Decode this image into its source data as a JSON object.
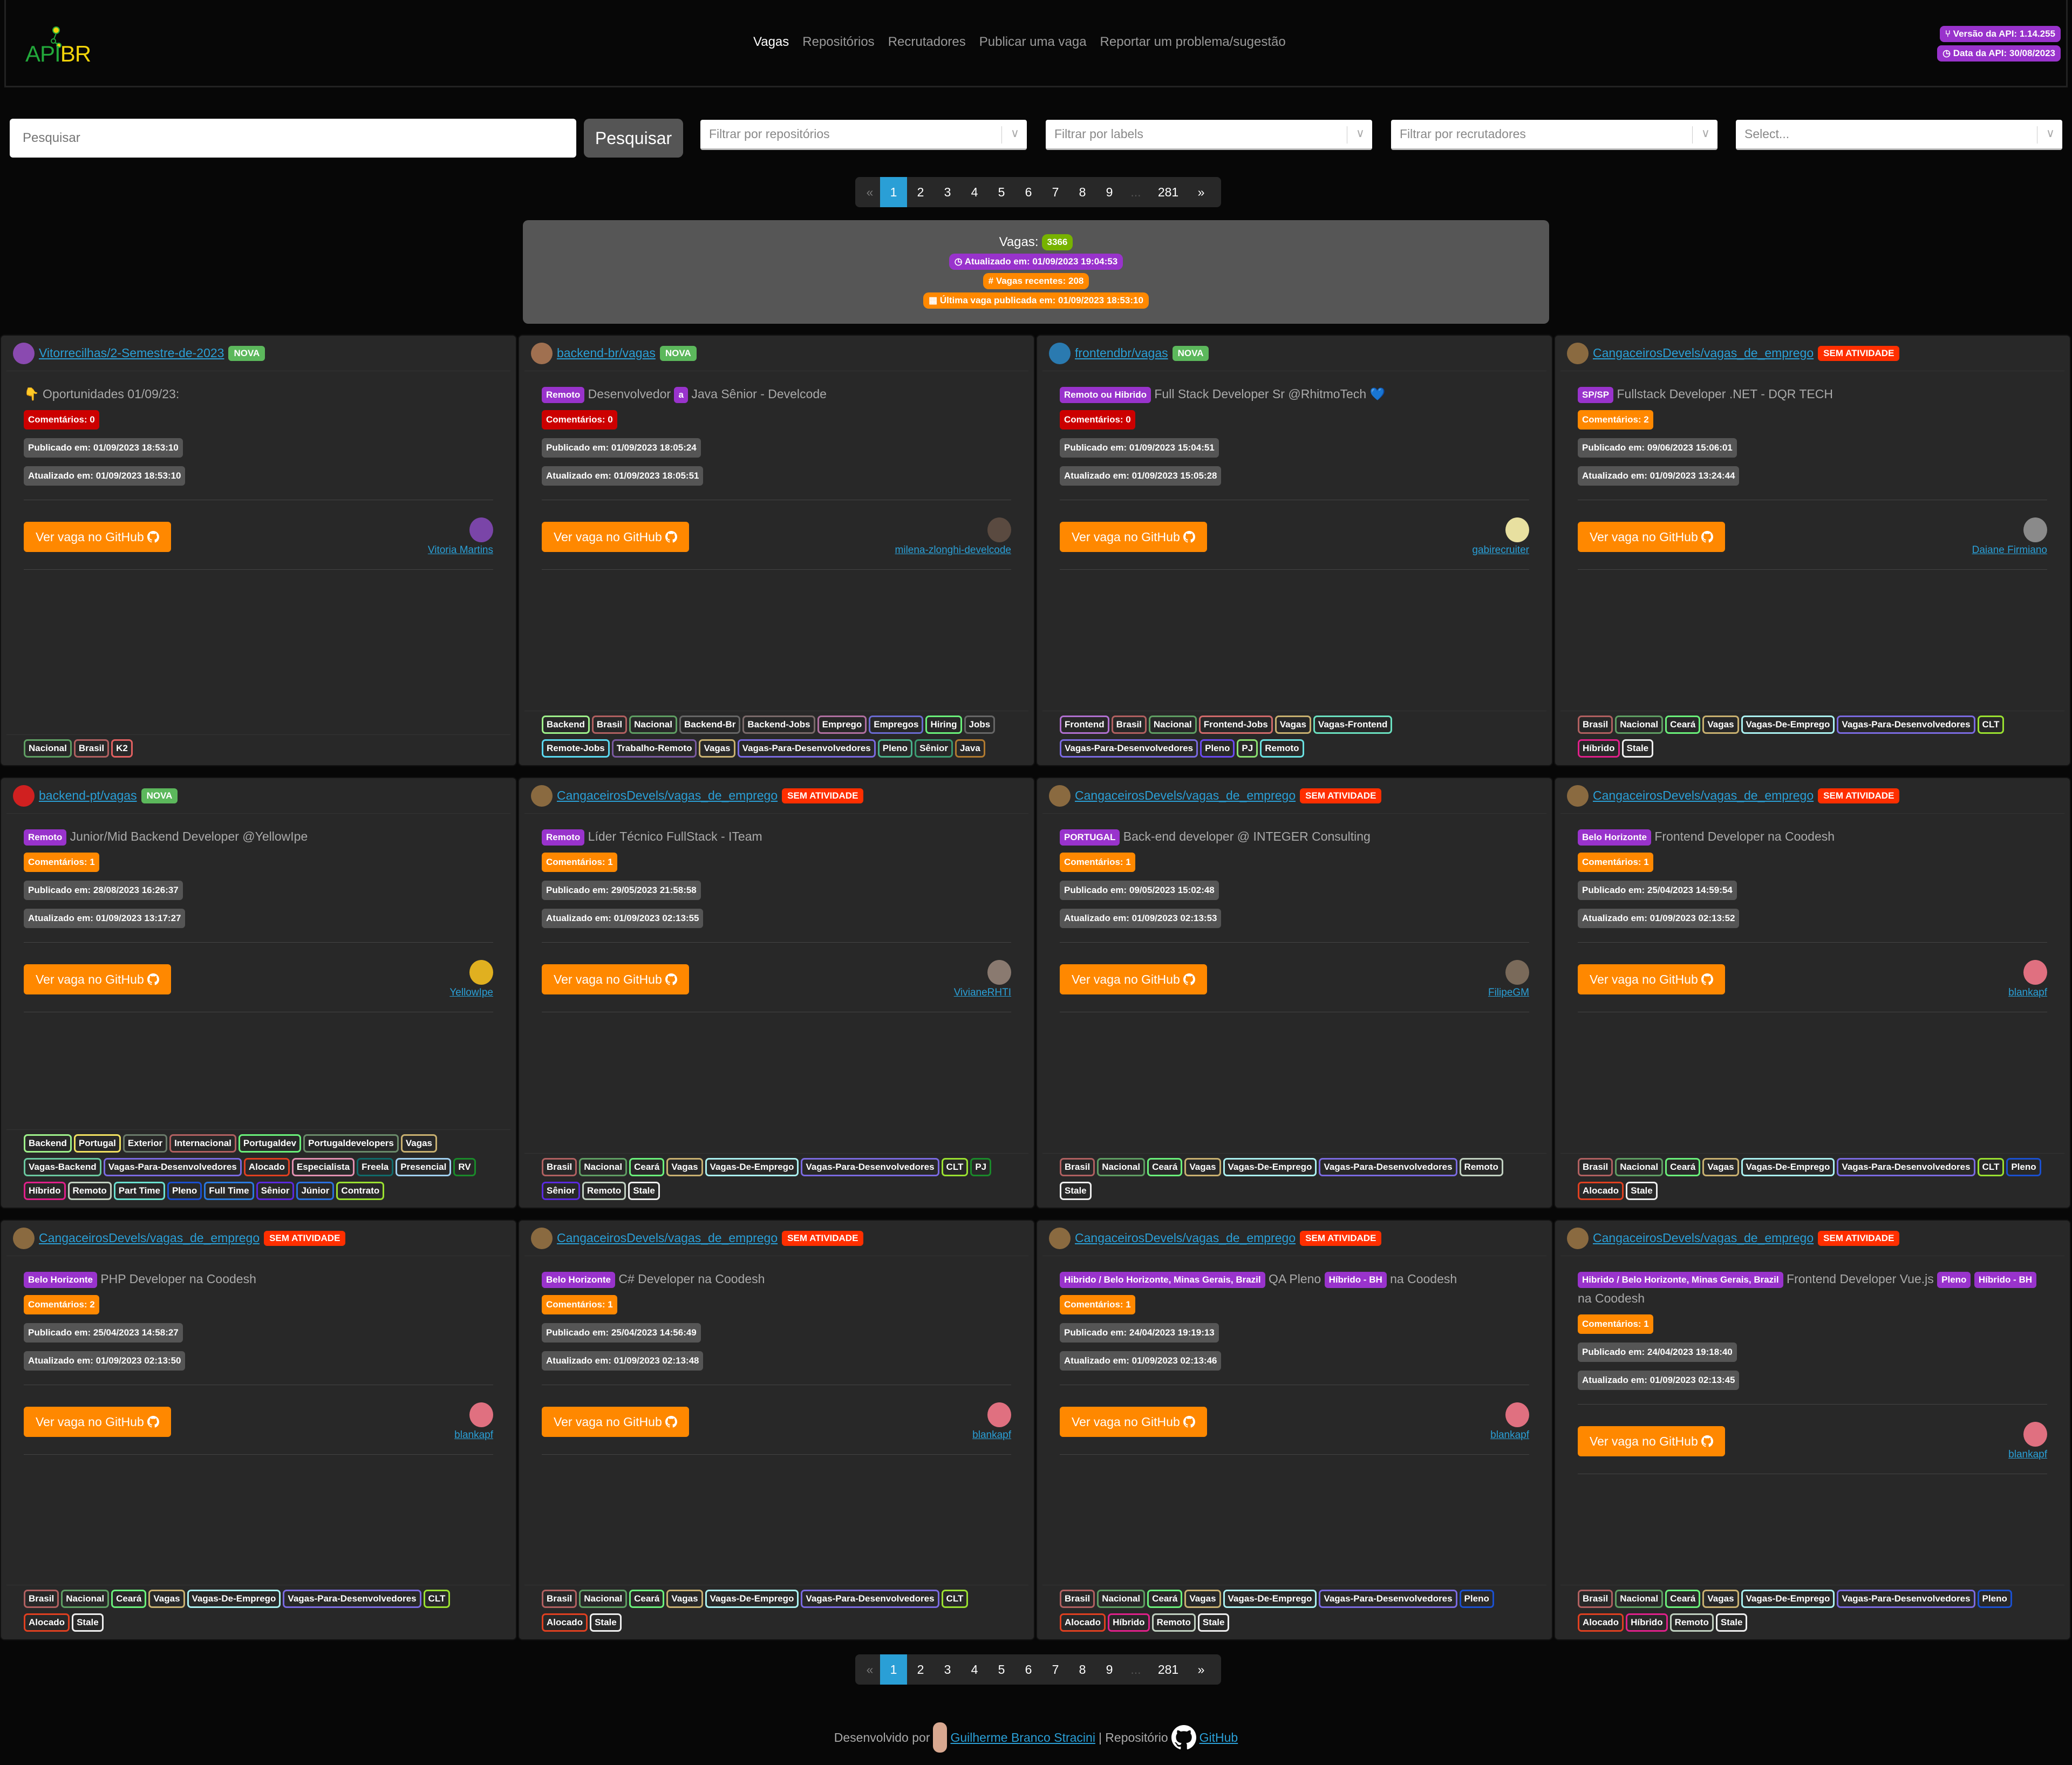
{
  "navbar": {
    "logo_api": "API",
    "logo_br": "BR",
    "links": [
      "Vagas",
      "Repositórios",
      "Recrutadores",
      "Publicar uma vaga",
      "Reportar um problema/sugestão"
    ],
    "active_index": 0,
    "api_version": "Versão da API: 1.14.255",
    "api_date": "Data da API: 30/08/2023"
  },
  "search": {
    "placeholder": "Pesquisar",
    "button": "Pesquisar"
  },
  "filters": [
    {
      "placeholder": "Filtrar por repositórios"
    },
    {
      "placeholder": "Filtrar por labels"
    },
    {
      "placeholder": "Filtrar por recrutadores"
    },
    {
      "placeholder": "Select..."
    }
  ],
  "pagination": {
    "prev": "«",
    "pages": [
      "1",
      "2",
      "3",
      "4",
      "5",
      "6",
      "7",
      "8",
      "9"
    ],
    "ellipsis": "...",
    "last": "281",
    "next": "»",
    "current": "1"
  },
  "summary": {
    "vagas_label": "Vagas:",
    "vagas_count": "3366",
    "updated": "Atualizado em: 01/09/2023 19:04:53",
    "recent": "Vagas recentes: 208",
    "last_published": "Última vaga publicada em: 01/09/2023 18:53:10"
  },
  "colors": {
    "accent": "#2a9fd6",
    "nova": "#5cb85c",
    "sem_atividade": "#ff2f00",
    "purple": "#9933cc",
    "orange": "#ff8800",
    "red": "#cc0000"
  },
  "cards": [
    {
      "repo": "Vitorrecilhas/2-Semestre-de-2023",
      "status": "NOVA",
      "avatar": "#8a4ab0",
      "title_parts": [
        {
          "t": "text",
          "v": "👇 Oportunidades 01/09/23:"
        }
      ],
      "comments": "Comentários: 0",
      "comments_color": "red",
      "published": "Publicado em: 01/09/2023 18:53:10",
      "updated": "Atualizado em: 01/09/2023 18:53:10",
      "button": "Ver vaga no GitHub",
      "recruiter": "Vitoria Martins",
      "rec_avatar": "#7a45a8",
      "labels": [
        [
          "Nacional",
          "#5f9e63"
        ],
        [
          "Brasil",
          "#b06060"
        ],
        [
          "K2",
          "#e06060"
        ]
      ]
    },
    {
      "repo": "backend-br/vagas",
      "status": "NOVA",
      "avatar": "#a07050",
      "title_parts": [
        {
          "t": "tag",
          "v": "Remoto"
        },
        {
          "t": "text",
          "v": " Desenvolvedor "
        },
        {
          "t": "tag",
          "v": "a"
        },
        {
          "t": "text",
          "v": " Java Sênior - Develcode"
        }
      ],
      "comments": "Comentários: 0",
      "comments_color": "red",
      "published": "Publicado em: 01/09/2023 18:05:24",
      "updated": "Atualizado em: 01/09/2023 18:05:51",
      "button": "Ver vaga no GitHub",
      "recruiter": "milena-zlonghi-develcode",
      "rec_avatar": "#5a4a40",
      "labels": [
        [
          "Backend",
          "#9ef08a"
        ],
        [
          "Brasil",
          "#b06060"
        ],
        [
          "Nacional",
          "#5f9e63"
        ],
        [
          "Backend-Br",
          "#666666"
        ],
        [
          "Backend-Jobs",
          "#7a6a6a"
        ],
        [
          "Emprego",
          "#b070a0"
        ],
        [
          "Empregos",
          "#6a6ad0"
        ],
        [
          "Hiring",
          "#6af07a"
        ],
        [
          "Jobs",
          "#666666"
        ],
        [
          "Remote-Jobs",
          "#5ad8f0"
        ],
        [
          "Trabalho-Remoto",
          "#7a5aa0"
        ],
        [
          "Vagas",
          "#c8b070"
        ],
        [
          "Vagas-Para-Desenvolvedores",
          "#7a6ae0"
        ],
        [
          "Pleno",
          "#4ab08a"
        ],
        [
          "Sênior",
          "#3a9a70"
        ],
        [
          "Java",
          "#b07a30"
        ]
      ]
    },
    {
      "repo": "frontendbr/vagas",
      "status": "NOVA",
      "avatar": "#2a7ab0",
      "title_parts": [
        {
          "t": "tag",
          "v": "Remoto ou Hibrido"
        },
        {
          "t": "text",
          "v": " Full Stack Developer Sr @RhitmoTech 💙"
        }
      ],
      "comments": "Comentários: 0",
      "comments_color": "red",
      "published": "Publicado em: 01/09/2023 15:04:51",
      "updated": "Atualizado em: 01/09/2023 15:05:28",
      "button": "Ver vaga no GitHub",
      "recruiter": "gabirecruiter",
      "rec_avatar": "#e8e0a0",
      "labels": [
        [
          "Frontend",
          "#b070d0"
        ],
        [
          "Brasil",
          "#b06060"
        ],
        [
          "Nacional",
          "#5f9e63"
        ],
        [
          "Frontend-Jobs",
          "#d06a6a"
        ],
        [
          "Vagas",
          "#c8b070"
        ],
        [
          "Vagas-Frontend",
          "#6ae0c0"
        ],
        [
          "Vagas-Para-Desenvolvedores",
          "#7a6ae0"
        ],
        [
          "Pleno",
          "#6a4af0"
        ],
        [
          "PJ",
          "#8ae070"
        ],
        [
          "Remoto",
          "#6ae0e0"
        ]
      ]
    },
    {
      "repo": "CangaceirosDevels/vagas_de_emprego",
      "status": "SEM ATIVIDADE",
      "avatar": "#8a6a40",
      "title_parts": [
        {
          "t": "tag",
          "v": "SP/SP"
        },
        {
          "t": "text",
          "v": " Fullstack Developer .NET - DQR TECH"
        }
      ],
      "comments": "Comentários: 2",
      "comments_color": "orange",
      "published": "Publicado em: 09/06/2023 15:06:01",
      "updated": "Atualizado em: 01/09/2023 13:24:44",
      "button": "Ver vaga no GitHub",
      "recruiter": "Daiane Firmiano",
      "rec_avatar": "#8a8a8a",
      "labels": [
        [
          "Brasil",
          "#b06060"
        ],
        [
          "Nacional",
          "#5f9e63"
        ],
        [
          "Ceará",
          "#6af07a"
        ],
        [
          "Vagas",
          "#c8b070"
        ],
        [
          "Vagas-De-Emprego",
          "#aaf0f0"
        ],
        [
          "Vagas-Para-Desenvolvedores",
          "#7a6ae0"
        ],
        [
          "CLT",
          "#9ae030"
        ],
        [
          "Híbrido",
          "#e0208a"
        ],
        [
          "Stale",
          "#eeeeee"
        ]
      ]
    },
    {
      "repo": "backend-pt/vagas",
      "status": "NOVA",
      "avatar": "#d02020",
      "title_parts": [
        {
          "t": "tag",
          "v": "Remoto"
        },
        {
          "t": "text",
          "v": " Junior/Mid Backend Developer @YellowIpe"
        }
      ],
      "comments": "Comentários: 1",
      "comments_color": "orange",
      "published": "Publicado em: 28/08/2023 16:26:37",
      "updated": "Atualizado em: 01/09/2023 13:17:27",
      "button": "Ver vaga no GitHub",
      "recruiter": "YellowIpe",
      "rec_avatar": "#e0b020",
      "labels": [
        [
          "Backend",
          "#9ef08a"
        ],
        [
          "Portugal",
          "#f0e060"
        ],
        [
          "Exterior",
          "#6a7a6a"
        ],
        [
          "Internacional",
          "#b06060"
        ],
        [
          "Portugaldev",
          "#6af07a"
        ],
        [
          "Portugaldevelopers",
          "#6a8a6a"
        ],
        [
          "Vagas",
          "#c8b070"
        ],
        [
          "Vagas-Backend",
          "#6ac8a0"
        ],
        [
          "Vagas-Para-Desenvolvedores",
          "#7a6ae0"
        ],
        [
          "Alocado",
          "#e04020"
        ],
        [
          "Especialista",
          "#e090b0"
        ],
        [
          "Freela",
          "#106a6a"
        ],
        [
          "Presencial",
          "#a0d0f0"
        ],
        [
          "RV",
          "#1a8a2a"
        ],
        [
          "Híbrido",
          "#e0208a"
        ],
        [
          "Remoto",
          "#c0d0c0"
        ],
        [
          "Part Time",
          "#6ae0d0"
        ],
        [
          "Pleno",
          "#1a50d0"
        ],
        [
          "Full Time",
          "#2a7ae0"
        ],
        [
          "Sênior",
          "#5a2ae0"
        ],
        [
          "Júnior",
          "#2a70e0"
        ],
        [
          "Contrato",
          "#9ae030"
        ]
      ]
    },
    {
      "repo": "CangaceirosDevels/vagas_de_emprego",
      "status": "SEM ATIVIDADE",
      "avatar": "#8a6a40",
      "title_parts": [
        {
          "t": "tag",
          "v": "Remoto"
        },
        {
          "t": "text",
          "v": " Líder Técnico FullStack - ITeam"
        }
      ],
      "comments": "Comentários: 1",
      "comments_color": "orange",
      "published": "Publicado em: 29/05/2023 21:58:58",
      "updated": "Atualizado em: 01/09/2023 02:13:55",
      "button": "Ver vaga no GitHub",
      "recruiter": "VivianeRHTI",
      "rec_avatar": "#8a7a70",
      "labels": [
        [
          "Brasil",
          "#b06060"
        ],
        [
          "Nacional",
          "#5f9e63"
        ],
        [
          "Ceará",
          "#6af07a"
        ],
        [
          "Vagas",
          "#c8b070"
        ],
        [
          "Vagas-De-Emprego",
          "#aaf0f0"
        ],
        [
          "Vagas-Para-Desenvolvedores",
          "#7a6ae0"
        ],
        [
          "CLT",
          "#9ae030"
        ],
        [
          "PJ",
          "#1a8a2a"
        ],
        [
          "Sênior",
          "#5a2ae0"
        ],
        [
          "Remoto",
          "#c0d0c0"
        ],
        [
          "Stale",
          "#eeeeee"
        ]
      ]
    },
    {
      "repo": "CangaceirosDevels/vagas_de_emprego",
      "status": "SEM ATIVIDADE",
      "avatar": "#8a6a40",
      "title_parts": [
        {
          "t": "tag",
          "v": "PORTUGAL"
        },
        {
          "t": "text",
          "v": " Back-end developer @ INTEGER Consulting"
        }
      ],
      "comments": "Comentários: 1",
      "comments_color": "orange",
      "published": "Publicado em: 09/05/2023 15:02:48",
      "updated": "Atualizado em: 01/09/2023 02:13:53",
      "button": "Ver vaga no GitHub",
      "recruiter": "FilipeGM",
      "rec_avatar": "#7a6a5a",
      "labels": [
        [
          "Brasil",
          "#b06060"
        ],
        [
          "Nacional",
          "#5f9e63"
        ],
        [
          "Ceará",
          "#6af07a"
        ],
        [
          "Vagas",
          "#c8b070"
        ],
        [
          "Vagas-De-Emprego",
          "#aaf0f0"
        ],
        [
          "Vagas-Para-Desenvolvedores",
          "#7a6ae0"
        ],
        [
          "Remoto",
          "#c0d0c0"
        ],
        [
          "Stale",
          "#eeeeee"
        ]
      ]
    },
    {
      "repo": "CangaceirosDevels/vagas_de_emprego",
      "status": "SEM ATIVIDADE",
      "avatar": "#8a6a40",
      "title_parts": [
        {
          "t": "tag",
          "v": "Belo Horizonte"
        },
        {
          "t": "text",
          "v": " Frontend Developer na Coodesh"
        }
      ],
      "comments": "Comentários: 1",
      "comments_color": "orange",
      "published": "Publicado em: 25/04/2023 14:59:54",
      "updated": "Atualizado em: 01/09/2023 02:13:52",
      "button": "Ver vaga no GitHub",
      "recruiter": "blankapf",
      "rec_avatar": "#e07080",
      "labels": [
        [
          "Brasil",
          "#b06060"
        ],
        [
          "Nacional",
          "#5f9e63"
        ],
        [
          "Ceará",
          "#6af07a"
        ],
        [
          "Vagas",
          "#c8b070"
        ],
        [
          "Vagas-De-Emprego",
          "#aaf0f0"
        ],
        [
          "Vagas-Para-Desenvolvedores",
          "#7a6ae0"
        ],
        [
          "CLT",
          "#9ae030"
        ],
        [
          "Pleno",
          "#1a50d0"
        ],
        [
          "Alocado",
          "#e04020"
        ],
        [
          "Stale",
          "#eeeeee"
        ]
      ]
    },
    {
      "repo": "CangaceirosDevels/vagas_de_emprego",
      "status": "SEM ATIVIDADE",
      "avatar": "#8a6a40",
      "title_parts": [
        {
          "t": "tag",
          "v": "Belo Horizonte"
        },
        {
          "t": "text",
          "v": " PHP Developer na Coodesh"
        }
      ],
      "comments": "Comentários: 2",
      "comments_color": "orange",
      "published": "Publicado em: 25/04/2023 14:58:27",
      "updated": "Atualizado em: 01/09/2023 02:13:50",
      "button": "Ver vaga no GitHub",
      "recruiter": "blankapf",
      "rec_avatar": "#e07080",
      "labels": [
        [
          "Brasil",
          "#b06060"
        ],
        [
          "Nacional",
          "#5f9e63"
        ],
        [
          "Ceará",
          "#6af07a"
        ],
        [
          "Vagas",
          "#c8b070"
        ],
        [
          "Vagas-De-Emprego",
          "#aaf0f0"
        ],
        [
          "Vagas-Para-Desenvolvedores",
          "#7a6ae0"
        ],
        [
          "CLT",
          "#9ae030"
        ],
        [
          "Alocado",
          "#e04020"
        ],
        [
          "Stale",
          "#eeeeee"
        ]
      ]
    },
    {
      "repo": "CangaceirosDevels/vagas_de_emprego",
      "status": "SEM ATIVIDADE",
      "avatar": "#8a6a40",
      "title_parts": [
        {
          "t": "tag",
          "v": "Belo Horizonte"
        },
        {
          "t": "text",
          "v": " C# Developer na Coodesh"
        }
      ],
      "comments": "Comentários: 1",
      "comments_color": "orange",
      "published": "Publicado em: 25/04/2023 14:56:49",
      "updated": "Atualizado em: 01/09/2023 02:13:48",
      "button": "Ver vaga no GitHub",
      "recruiter": "blankapf",
      "rec_avatar": "#e07080",
      "labels": [
        [
          "Brasil",
          "#b06060"
        ],
        [
          "Nacional",
          "#5f9e63"
        ],
        [
          "Ceará",
          "#6af07a"
        ],
        [
          "Vagas",
          "#c8b070"
        ],
        [
          "Vagas-De-Emprego",
          "#aaf0f0"
        ],
        [
          "Vagas-Para-Desenvolvedores",
          "#7a6ae0"
        ],
        [
          "CLT",
          "#9ae030"
        ],
        [
          "Alocado",
          "#e04020"
        ],
        [
          "Stale",
          "#eeeeee"
        ]
      ]
    },
    {
      "repo": "CangaceirosDevels/vagas_de_emprego",
      "status": "SEM ATIVIDADE",
      "avatar": "#8a6a40",
      "title_parts": [
        {
          "t": "tag",
          "v": "Hibrido / Belo Horizonte, Minas Gerais, Brazil"
        },
        {
          "t": "text",
          "v": " QA Pleno "
        },
        {
          "t": "tag",
          "v": "Híbrido - BH"
        },
        {
          "t": "text",
          "v": " na Coodesh"
        }
      ],
      "comments": "Comentários: 1",
      "comments_color": "orange",
      "published": "Publicado em: 24/04/2023 19:19:13",
      "updated": "Atualizado em: 01/09/2023 02:13:46",
      "button": "Ver vaga no GitHub",
      "recruiter": "blankapf",
      "rec_avatar": "#e07080",
      "labels": [
        [
          "Brasil",
          "#b06060"
        ],
        [
          "Nacional",
          "#5f9e63"
        ],
        [
          "Ceará",
          "#6af07a"
        ],
        [
          "Vagas",
          "#c8b070"
        ],
        [
          "Vagas-De-Emprego",
          "#aaf0f0"
        ],
        [
          "Vagas-Para-Desenvolvedores",
          "#7a6ae0"
        ],
        [
          "Pleno",
          "#1a50d0"
        ],
        [
          "Alocado",
          "#e04020"
        ],
        [
          "Híbrido",
          "#e0208a"
        ],
        [
          "Remoto",
          "#c0d0c0"
        ],
        [
          "Stale",
          "#eeeeee"
        ]
      ]
    },
    {
      "repo": "CangaceirosDevels/vagas_de_emprego",
      "status": "SEM ATIVIDADE",
      "avatar": "#8a6a40",
      "title_parts": [
        {
          "t": "tag",
          "v": "Hibrido / Belo Horizonte, Minas Gerais, Brazil"
        },
        {
          "t": "text",
          "v": " Frontend Developer Vue.js "
        },
        {
          "t": "tag",
          "v": "Pleno"
        },
        {
          "t": "text",
          "v": " "
        },
        {
          "t": "tag",
          "v": "Híbrido - BH"
        },
        {
          "t": "text",
          "v": " na Coodesh"
        }
      ],
      "comments": "Comentários: 1",
      "comments_color": "orange",
      "published": "Publicado em: 24/04/2023 19:18:40",
      "updated": "Atualizado em: 01/09/2023 02:13:45",
      "button": "Ver vaga no GitHub",
      "recruiter": "blankapf",
      "rec_avatar": "#e07080",
      "labels": [
        [
          "Brasil",
          "#b06060"
        ],
        [
          "Nacional",
          "#5f9e63"
        ],
        [
          "Ceará",
          "#6af07a"
        ],
        [
          "Vagas",
          "#c8b070"
        ],
        [
          "Vagas-De-Emprego",
          "#aaf0f0"
        ],
        [
          "Vagas-Para-Desenvolvedores",
          "#7a6ae0"
        ],
        [
          "Pleno",
          "#1a50d0"
        ],
        [
          "Alocado",
          "#e04020"
        ],
        [
          "Híbrido",
          "#e0208a"
        ],
        [
          "Remoto",
          "#c0d0c0"
        ],
        [
          "Stale",
          "#eeeeee"
        ]
      ]
    }
  ],
  "footer": {
    "developed_by": "Desenvolvido por",
    "author": "Guilherme Branco Stracini",
    "separator": "| Repositório",
    "repo_link": "GitHub"
  }
}
